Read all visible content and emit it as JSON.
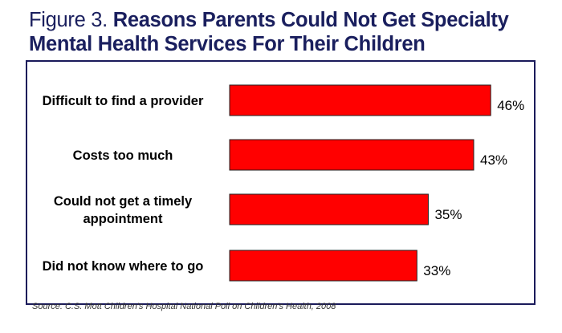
{
  "title": {
    "lead": "Figure 3.",
    "line1_bold": "Reasons Parents Could Not Get Specialty",
    "line2_bold": "Mental Health Services For Their Children"
  },
  "source": "Source: C.S. Mott Children's Hospital National Poll on Children's Health, 2008",
  "colors": {
    "bar": "#ff0000",
    "title": "#1a1f5e",
    "frame": "#1a1a5a"
  },
  "chart_data": {
    "type": "bar",
    "orientation": "horizontal",
    "title": "Figure 3. Reasons Parents Could Not Get Specialty Mental Health Services For Their Children",
    "categories": [
      [
        "Difficult to find a provider"
      ],
      [
        "Costs too much"
      ],
      [
        "Could not get a timely",
        "appointment"
      ],
      [
        "Did not know where to go"
      ]
    ],
    "values": [
      46,
      43,
      35,
      33
    ],
    "data_labels": [
      "46%",
      "43%",
      "35%",
      "33%"
    ],
    "unit": "%",
    "xlabel": "",
    "ylabel": "",
    "xlim": [
      0,
      50
    ],
    "grid": false,
    "legend": "none"
  }
}
